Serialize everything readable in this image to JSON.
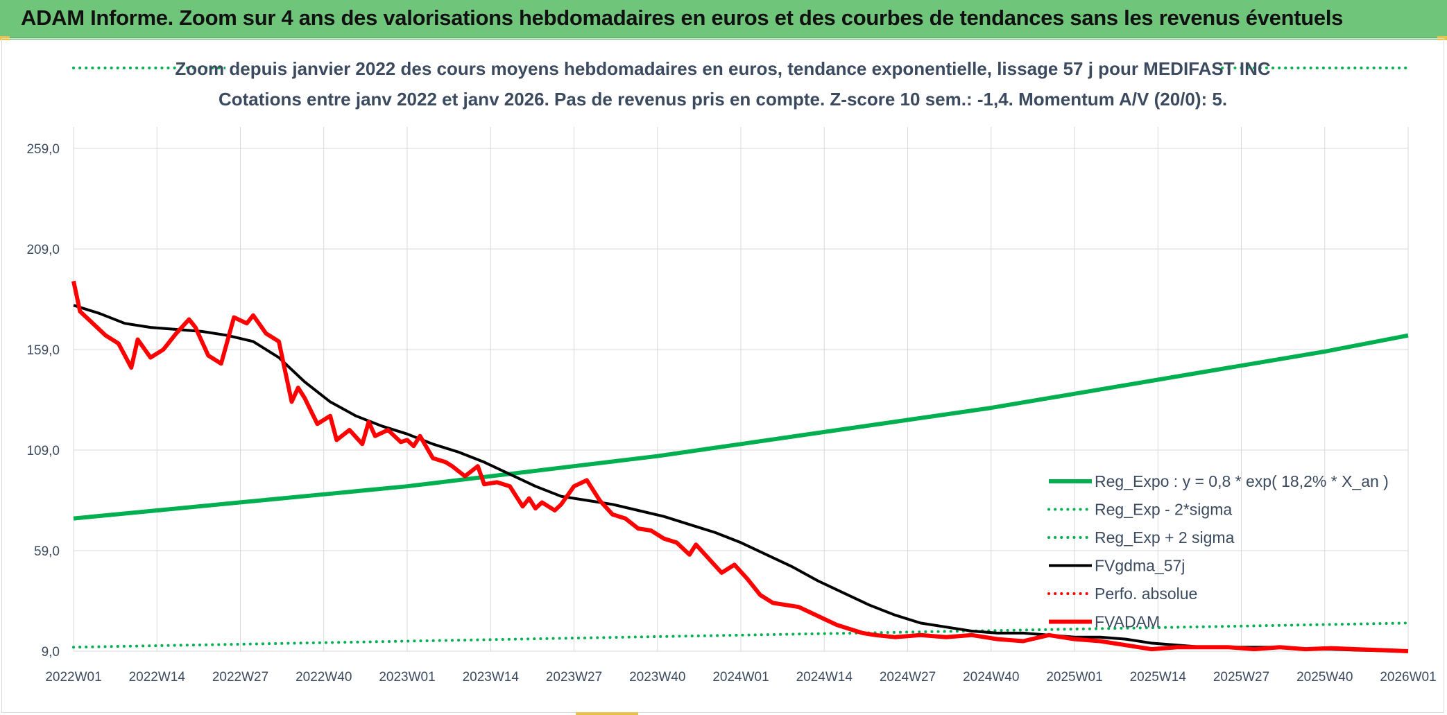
{
  "header": {
    "title": "ADAM Informe. Zoom sur 4 ans des valorisations hebdomadaires en euros et des courbes de tendances sans les revenus éventuels"
  },
  "chart_data": {
    "type": "line",
    "title": "Zoom depuis janvier 2022 des cours moyens hebdomadaires en euros, tendance exponentielle, lissage 57 j pour MEDIFAST INC",
    "subtitle": "Cotations entre janv 2022 et janv 2026. Pas de revenus pris en compte. Z-score 10 sem.: -1,4. Momentum A/V (20/0): 5.",
    "x_tick_labels": [
      "2022W01",
      "2022W14",
      "2022W27",
      "2022W40",
      "2023W01",
      "2023W14",
      "2023W27",
      "2023W40",
      "2024W01",
      "2024W14",
      "2024W27",
      "2024W40",
      "2025W01",
      "2025W14",
      "2025W27",
      "2025W40",
      "2026W01"
    ],
    "y_tick_labels": [
      "9,0",
      "59,0",
      "109,0",
      "159,0",
      "209,0",
      "259,0"
    ],
    "ylim": [
      9,
      299
    ],
    "grid": true,
    "legend_position": "right",
    "colors": {
      "reg_expo": "#00b050",
      "reg_minus": "#00b050",
      "reg_plus": "#00b050",
      "fvgdma": "#000000",
      "perfo": "#ff0000",
      "fvadam": "#ff0000"
    },
    "series": [
      {
        "key": "reg_expo",
        "name": "Reg_Expo : y = 0,8 * exp( 18,2% *  X_an )",
        "style": "solid-thick",
        "x": [
          0,
          13,
          26,
          39,
          52,
          65,
          78,
          91,
          104,
          117,
          130,
          143,
          156,
          169,
          182,
          195,
          208
        ],
        "values": [
          75,
          79,
          83,
          87,
          91,
          96,
          101,
          106,
          112,
          118,
          124,
          130,
          137,
          144,
          151,
          158,
          166
        ]
      },
      {
        "key": "reg_minus",
        "name": "Reg_Exp - 2*sigma",
        "style": "dotted",
        "x": [
          0,
          26,
          52,
          78,
          104,
          130,
          156,
          182,
          208
        ],
        "values": [
          11,
          12.5,
          14,
          15.5,
          17,
          18.5,
          20,
          21.5,
          23
        ]
      },
      {
        "key": "reg_plus",
        "name": "Reg_Exp + 2 sigma",
        "style": "dotted",
        "x": [
          0,
          208
        ],
        "values": [
          299,
          299
        ]
      },
      {
        "key": "fvgdma",
        "name": "FVgdma_57j",
        "style": "solid",
        "x": [
          0,
          4,
          8,
          12,
          16,
          20,
          24,
          28,
          32,
          36,
          40,
          44,
          48,
          52,
          56,
          60,
          64,
          68,
          72,
          76,
          80,
          84,
          88,
          92,
          96,
          100,
          104,
          108,
          112,
          116,
          120,
          124,
          128,
          132,
          136,
          140,
          144,
          148,
          152,
          156,
          160,
          164,
          168,
          172,
          176,
          180,
          184,
          188,
          192,
          196,
          200,
          204,
          208
        ],
        "values": [
          181,
          177,
          172,
          170,
          169,
          168,
          166,
          163,
          155,
          143,
          133,
          126,
          121,
          117,
          112,
          108,
          103,
          97,
          91,
          86,
          84,
          82,
          79,
          76,
          72,
          68,
          63,
          57,
          51,
          44,
          38,
          32,
          27,
          23,
          21,
          19,
          18,
          18,
          17,
          16,
          16,
          15,
          13,
          12,
          11,
          11,
          11,
          11,
          10,
          10,
          9.5,
          9.2,
          9
        ]
      },
      {
        "key": "perfo",
        "name": "Perfo. absolue",
        "style": "dotted",
        "x": [],
        "values": []
      },
      {
        "key": "fvadam",
        "name": "FVADAM",
        "style": "solid-thick",
        "x": [
          0,
          1,
          3,
          5,
          7,
          9,
          10,
          12,
          14,
          16,
          18,
          19,
          21,
          23,
          25,
          27,
          28,
          30,
          32,
          34,
          35,
          36,
          38,
          40,
          41,
          43,
          45,
          46,
          47,
          49,
          51,
          52,
          53,
          54,
          56,
          58,
          59,
          61,
          63,
          64,
          66,
          68,
          70,
          71,
          72,
          73,
          75,
          76,
          78,
          80,
          82,
          84,
          86,
          88,
          90,
          92,
          94,
          96,
          97,
          99,
          101,
          103,
          105,
          107,
          109,
          111,
          113,
          115,
          117,
          119,
          121,
          123,
          125,
          128,
          132,
          136,
          140,
          144,
          148,
          152,
          156,
          160,
          164,
          168,
          172,
          176,
          180,
          184,
          188,
          192,
          196,
          200,
          204,
          208
        ],
        "values": [
          193,
          178,
          172,
          166,
          162,
          150,
          164,
          155,
          159,
          167,
          174,
          170,
          156,
          152,
          175,
          172,
          176,
          167,
          163,
          133,
          140,
          135,
          122,
          126,
          114,
          119,
          112,
          123,
          116,
          119,
          113,
          114,
          111,
          116,
          105,
          103,
          101,
          96,
          101,
          92,
          93,
          91,
          81,
          85,
          80,
          83,
          79,
          82,
          91,
          94,
          84,
          77,
          75,
          70,
          69,
          65,
          63,
          57,
          62,
          55,
          48,
          52,
          45,
          37,
          33,
          32,
          31,
          28,
          25,
          22,
          20,
          18,
          17,
          16,
          17,
          16,
          17,
          15,
          14,
          17,
          15,
          14,
          12,
          10,
          11,
          11,
          11,
          10,
          11,
          10,
          10.5,
          10,
          9.5,
          9
        ]
      }
    ]
  }
}
